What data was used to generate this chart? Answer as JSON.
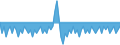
{
  "values": [
    0,
    -3,
    -1,
    -4,
    -2,
    -1,
    -3,
    -1,
    -2,
    -4,
    -2,
    -3,
    -1,
    -2,
    -3,
    -2,
    -4,
    -2,
    -3,
    -2,
    -1,
    -3,
    -2,
    -3,
    -1,
    -2,
    -1,
    3,
    6,
    1,
    -4,
    -6,
    -3,
    -4,
    -2,
    -3,
    -1,
    -3,
    -2,
    -4,
    -2,
    -1,
    -3,
    -2,
    -3,
    -1,
    -2,
    -3,
    -2,
    -1,
    -3,
    -1,
    -2,
    -1,
    -3,
    -2,
    -1,
    -3,
    -2,
    -1
  ],
  "line_color": "#4a9fd4",
  "fill_color": "#5aaedd",
  "background_color": "#ffffff",
  "linewidth": 0.7
}
